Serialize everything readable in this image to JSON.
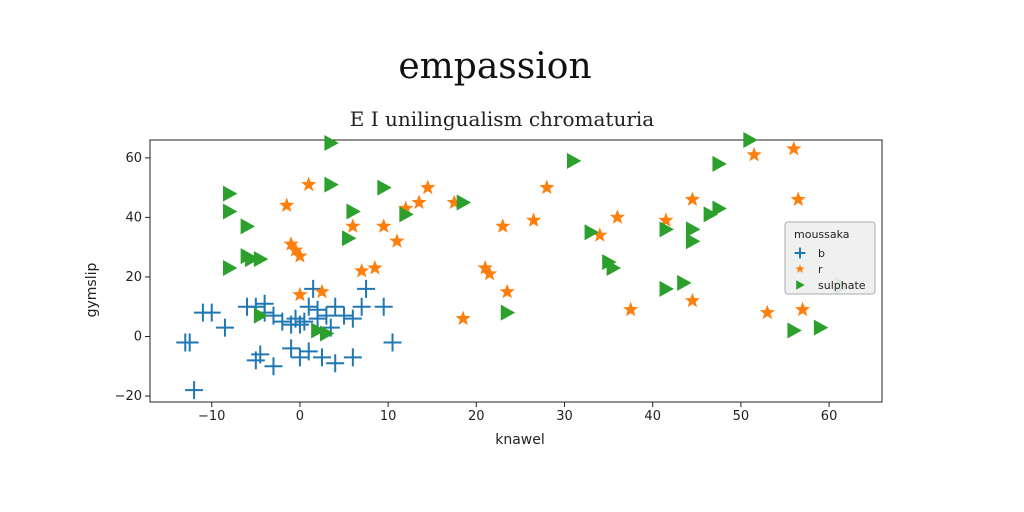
{
  "chart_data": {
    "type": "scatter",
    "title": "empassion",
    "subtitle": "E I unilingualism chromaturia",
    "xlabel": "knawel",
    "ylabel": "gymslip",
    "xlim": [
      -17,
      66
    ],
    "ylim": [
      -22,
      66
    ],
    "xticks": [
      -10,
      0,
      10,
      20,
      30,
      40,
      50,
      60
    ],
    "yticks": [
      -20,
      0,
      20,
      40,
      60
    ],
    "grid": false,
    "legend": {
      "title": "moussaka",
      "placement": "right"
    },
    "series": [
      {
        "name": "b",
        "marker": "plus",
        "color": "#1f77b4",
        "points": [
          [
            -13,
            -2
          ],
          [
            -12.5,
            -2
          ],
          [
            -12,
            -18
          ],
          [
            -11,
            8
          ],
          [
            -10,
            8
          ],
          [
            -8.5,
            3
          ],
          [
            -6,
            10
          ],
          [
            -5,
            10
          ],
          [
            -4,
            11
          ],
          [
            -4,
            8
          ],
          [
            -3,
            7
          ],
          [
            -2,
            5
          ],
          [
            -1,
            4
          ],
          [
            -0.5,
            6
          ],
          [
            0,
            4
          ],
          [
            0.5,
            5
          ],
          [
            1,
            10
          ],
          [
            1.5,
            16
          ],
          [
            2,
            6
          ],
          [
            2,
            9
          ],
          [
            3,
            7
          ],
          [
            3.5,
            3
          ],
          [
            4,
            10
          ],
          [
            5,
            7
          ],
          [
            6,
            6
          ],
          [
            7,
            10
          ],
          [
            7.5,
            16
          ],
          [
            9.5,
            10
          ],
          [
            10.5,
            -2
          ],
          [
            -5,
            -8
          ],
          [
            -4.5,
            -6
          ],
          [
            -3,
            -10
          ],
          [
            -1,
            -4
          ],
          [
            0,
            -7
          ],
          [
            1,
            -5
          ],
          [
            2.5,
            -7
          ],
          [
            4,
            -9
          ],
          [
            6,
            -7
          ]
        ]
      },
      {
        "name": "r",
        "marker": "star",
        "color": "#ff7f0e",
        "points": [
          [
            -1.5,
            44
          ],
          [
            -1,
            31
          ],
          [
            -0.5,
            29
          ],
          [
            0,
            27
          ],
          [
            1,
            51
          ],
          [
            0,
            14
          ],
          [
            2.5,
            15
          ],
          [
            6,
            37
          ],
          [
            7,
            22
          ],
          [
            8.5,
            23
          ],
          [
            9.5,
            37
          ],
          [
            11,
            32
          ],
          [
            12,
            43
          ],
          [
            13.5,
            45
          ],
          [
            14.5,
            50
          ],
          [
            17.5,
            45
          ],
          [
            18.5,
            6
          ],
          [
            21,
            23
          ],
          [
            21.5,
            21
          ],
          [
            23,
            37
          ],
          [
            23.5,
            15
          ],
          [
            26.5,
            39
          ],
          [
            28,
            50
          ],
          [
            34,
            34
          ],
          [
            36,
            40
          ],
          [
            37.5,
            9
          ],
          [
            41.5,
            39
          ],
          [
            44.5,
            46
          ],
          [
            44.5,
            12
          ],
          [
            51.5,
            61
          ],
          [
            53,
            8
          ],
          [
            56,
            63
          ],
          [
            56.5,
            46
          ],
          [
            57,
            9
          ]
        ]
      },
      {
        "name": "sulphate",
        "marker": "triangle-right",
        "color": "#2ca02c",
        "points": [
          [
            -8,
            48
          ],
          [
            -8,
            42
          ],
          [
            -8,
            23
          ],
          [
            -6,
            37
          ],
          [
            -6,
            27
          ],
          [
            -5.5,
            26
          ],
          [
            -4.5,
            26
          ],
          [
            -4.5,
            7
          ],
          [
            3.5,
            65
          ],
          [
            3.5,
            51
          ],
          [
            2,
            2
          ],
          [
            3,
            1
          ],
          [
            5.5,
            33
          ],
          [
            6,
            42
          ],
          [
            9.5,
            50
          ],
          [
            12,
            41
          ],
          [
            18.5,
            45
          ],
          [
            23.5,
            8
          ],
          [
            31,
            59
          ],
          [
            33,
            35
          ],
          [
            35,
            25
          ],
          [
            35.5,
            23
          ],
          [
            41.5,
            36
          ],
          [
            41.5,
            16
          ],
          [
            43.5,
            18
          ],
          [
            44.5,
            36
          ],
          [
            44.5,
            32
          ],
          [
            46.5,
            41
          ],
          [
            47.5,
            58
          ],
          [
            47.5,
            43
          ],
          [
            51,
            66
          ],
          [
            56,
            2
          ],
          [
            59,
            3
          ],
          [
            61.5,
            17
          ]
        ]
      }
    ]
  }
}
